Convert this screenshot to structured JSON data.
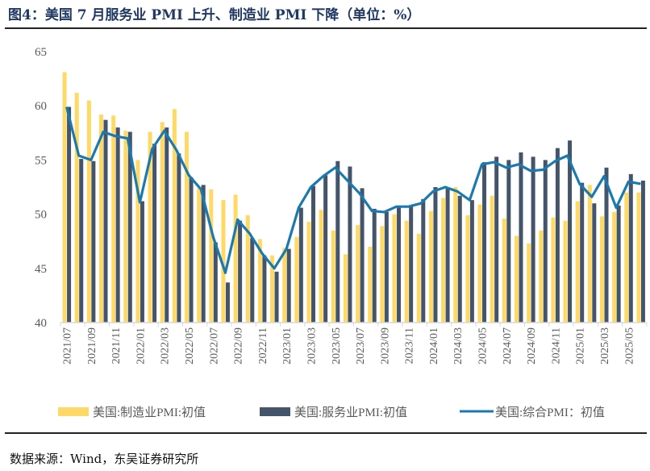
{
  "title": "图4：美国 7 月服务业 PMI 上升、制造业 PMI 下降（单位：%）",
  "source": "数据来源：Wind，东吴证券研究所",
  "chart_data": {
    "type": "bar+line",
    "title": "",
    "xlabel": "",
    "ylabel": "",
    "ylim": [
      40,
      65
    ],
    "yticks": [
      40,
      45,
      50,
      55,
      60,
      65
    ],
    "grid": false,
    "legend_position": "bottom",
    "categories": [
      "2021/07",
      "2021/08",
      "2021/09",
      "2021/10",
      "2021/11",
      "2021/12",
      "2022/01",
      "2022/02",
      "2022/03",
      "2022/04",
      "2022/05",
      "2022/06",
      "2022/07",
      "2022/08",
      "2022/09",
      "2022/10",
      "2022/11",
      "2022/12",
      "2023/01",
      "2023/02",
      "2023/03",
      "2023/04",
      "2023/05",
      "2023/06",
      "2023/07",
      "2023/08",
      "2023/09",
      "2023/10",
      "2023/11",
      "2023/12",
      "2024/01",
      "2024/02",
      "2024/03",
      "2024/04",
      "2024/05",
      "2024/06",
      "2024/07",
      "2024/08",
      "2024/09",
      "2024/10",
      "2024/11",
      "2024/12",
      "2025/01",
      "2025/02",
      "2025/03",
      "2025/04",
      "2025/05",
      "2025/06"
    ],
    "series": [
      {
        "name": "美国:制造业PMI:初值",
        "type": "bar",
        "color": "#ffd966",
        "values": [
          63.1,
          61.2,
          60.5,
          59.2,
          59.1,
          57.7,
          55.0,
          57.6,
          58.5,
          59.7,
          57.6,
          52.4,
          52.3,
          51.3,
          51.8,
          49.9,
          47.7,
          46.2,
          46.9,
          47.9,
          49.3,
          50.4,
          48.5,
          46.3,
          49.0,
          47.0,
          48.9,
          50.0,
          49.4,
          48.2,
          50.3,
          51.5,
          52.5,
          49.9,
          50.9,
          51.7,
          49.6,
          48.0,
          47.3,
          48.5,
          49.7,
          49.4,
          51.2,
          52.7,
          49.8,
          50.2,
          52.0,
          52.0
        ]
      },
      {
        "name": "美国:服务业PMI:初值",
        "type": "bar",
        "color": "#44546a",
        "values": [
          59.9,
          55.1,
          54.9,
          58.7,
          58.0,
          57.6,
          51.2,
          56.5,
          58.0,
          55.6,
          53.4,
          52.7,
          47.4,
          43.7,
          49.4,
          47.8,
          46.2,
          44.7,
          46.8,
          50.6,
          52.6,
          53.6,
          54.9,
          54.4,
          52.4,
          50.5,
          50.2,
          50.7,
          50.8,
          51.4,
          52.5,
          52.4,
          51.7,
          51.3,
          54.8,
          55.3,
          55.0,
          55.7,
          55.3,
          55.0,
          56.1,
          56.8,
          52.9,
          51.0,
          54.3,
          50.8,
          53.7,
          53.1
        ]
      },
      {
        "name": "美国:综合PMI：初值",
        "type": "line",
        "color": "#1a7ab0",
        "values": [
          59.9,
          55.4,
          55.0,
          57.6,
          57.2,
          57.0,
          51.1,
          56.0,
          57.7,
          55.9,
          53.6,
          52.3,
          47.9,
          44.6,
          49.5,
          48.2,
          46.4,
          45.0,
          46.8,
          50.6,
          52.5,
          53.5,
          54.3,
          53.1,
          51.9,
          50.3,
          50.2,
          50.7,
          50.7,
          51.0,
          52.1,
          52.5,
          52.1,
          51.3,
          54.6,
          54.8,
          54.3,
          54.6,
          54.0,
          54.1,
          54.9,
          55.4,
          52.8,
          51.6,
          53.5,
          50.6,
          53.0,
          52.8
        ]
      }
    ]
  }
}
